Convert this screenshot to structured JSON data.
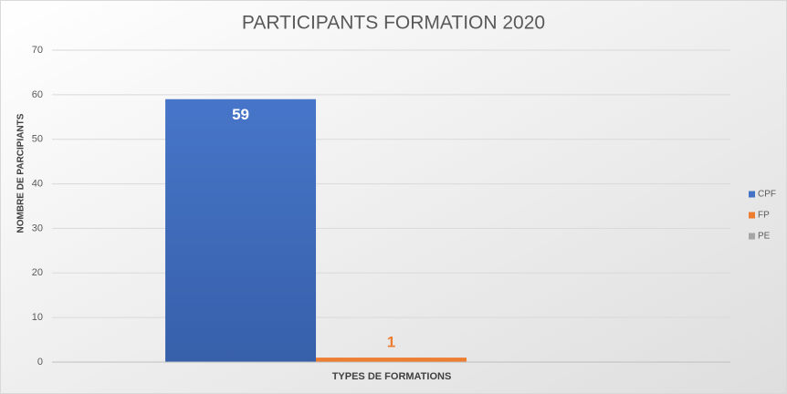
{
  "chart_data": {
    "type": "bar",
    "title": "PARTICIPANTS FORMATION 2020",
    "x_label": "TYPES DE FORMATIONS",
    "y_label": "NOMBRE DE PARCIPIANTS",
    "categories": [
      null
    ],
    "series": [
      {
        "name": "CPF",
        "color": "#4472c4",
        "values": [
          59
        ]
      },
      {
        "name": "FP",
        "color": "#ed7d31",
        "values": [
          1
        ]
      },
      {
        "name": "PE",
        "color": "#a5a5a5",
        "values": [
          null
        ]
      }
    ],
    "ylim": [
      0,
      70
    ],
    "yticks": [
      0,
      10,
      20,
      30,
      40,
      50,
      60,
      70
    ],
    "grid": true,
    "legend": "right"
  }
}
